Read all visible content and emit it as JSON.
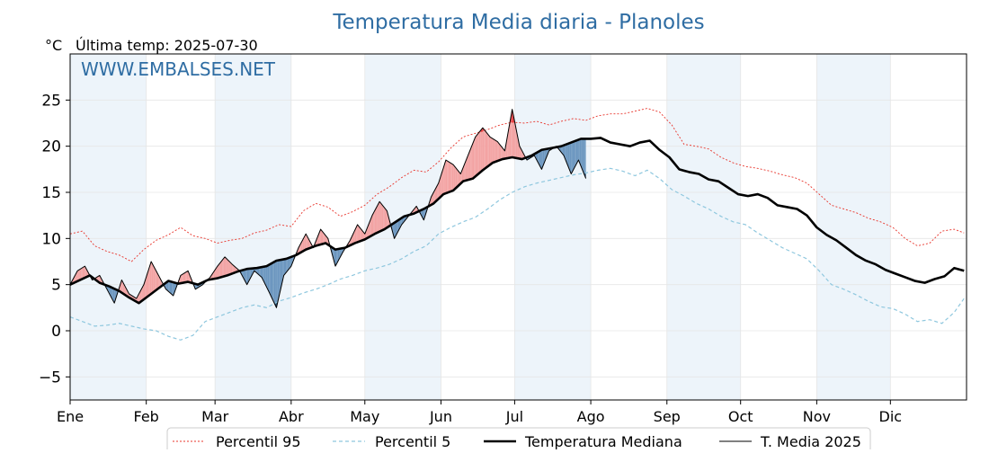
{
  "chart_data": {
    "type": "line",
    "title": "Temperatura Media diaria - Planoles",
    "unit": "°C",
    "subtitle": "Última temp: 2025-07-30",
    "watermark": "WWW.EMBALSES.NET",
    "ylim": [
      -7.5,
      30
    ],
    "yticks": [
      -5,
      0,
      5,
      10,
      15,
      20,
      25
    ],
    "months": [
      "Ene",
      "Feb",
      "Mar",
      "Abr",
      "May",
      "Jun",
      "Jul",
      "Ago",
      "Sep",
      "Oct",
      "Nov",
      "Dic"
    ],
    "month_start_days": [
      0,
      31,
      59,
      90,
      120,
      151,
      181,
      212,
      243,
      273,
      304,
      334
    ],
    "days_in_year": 365,
    "legend_position": "bottom",
    "legend": [
      "Percentil 95",
      "Percentil 5",
      "Temperatura Mediana",
      "T. Media 2025"
    ],
    "colors": {
      "title": "#2f6da3",
      "p95": "#e8342b",
      "p5": "#8ec7de",
      "median": "#000000",
      "current": "#000000",
      "above_fill": "#f3a3a3",
      "above_p95_fill": "#e8474b",
      "below_fill": "#6b96bf",
      "below_p5_fill": "#24476b",
      "month_band": "#edf4fa",
      "grid": "#e6e6e6"
    },
    "series": [
      {
        "name": "Percentil 95",
        "key": "p95",
        "points": [
          [
            0,
            10.5
          ],
          [
            5,
            10.8
          ],
          [
            10,
            9.2
          ],
          [
            15,
            8.6
          ],
          [
            20,
            8.2
          ],
          [
            25,
            7.5
          ],
          [
            30,
            8.8
          ],
          [
            35,
            9.8
          ],
          [
            40,
            10.4
          ],
          [
            45,
            11.2
          ],
          [
            50,
            10.3
          ],
          [
            55,
            10.0
          ],
          [
            60,
            9.5
          ],
          [
            65,
            9.8
          ],
          [
            70,
            10.0
          ],
          [
            75,
            10.6
          ],
          [
            80,
            10.9
          ],
          [
            85,
            11.5
          ],
          [
            90,
            11.3
          ],
          [
            95,
            13.0
          ],
          [
            100,
            13.8
          ],
          [
            105,
            13.4
          ],
          [
            110,
            12.4
          ],
          [
            115,
            12.9
          ],
          [
            120,
            13.6
          ],
          [
            125,
            14.8
          ],
          [
            130,
            15.6
          ],
          [
            135,
            16.6
          ],
          [
            140,
            17.4
          ],
          [
            145,
            17.2
          ],
          [
            150,
            18.3
          ],
          [
            155,
            19.8
          ],
          [
            160,
            21.0
          ],
          [
            165,
            21.4
          ],
          [
            170,
            21.8
          ],
          [
            175,
            22.3
          ],
          [
            180,
            22.6
          ],
          [
            185,
            22.5
          ],
          [
            190,
            22.7
          ],
          [
            195,
            22.3
          ],
          [
            200,
            22.7
          ],
          [
            205,
            23.0
          ],
          [
            210,
            22.8
          ],
          [
            215,
            23.3
          ],
          [
            220,
            23.5
          ],
          [
            225,
            23.5
          ],
          [
            230,
            23.8
          ],
          [
            235,
            24.1
          ],
          [
            240,
            23.7
          ],
          [
            245,
            22.3
          ],
          [
            250,
            20.2
          ],
          [
            255,
            20.0
          ],
          [
            260,
            19.7
          ],
          [
            265,
            18.8
          ],
          [
            270,
            18.2
          ],
          [
            275,
            17.8
          ],
          [
            280,
            17.6
          ],
          [
            285,
            17.3
          ],
          [
            290,
            16.9
          ],
          [
            295,
            16.6
          ],
          [
            300,
            16.0
          ],
          [
            305,
            14.8
          ],
          [
            310,
            13.6
          ],
          [
            315,
            13.2
          ],
          [
            320,
            12.8
          ],
          [
            325,
            12.2
          ],
          [
            330,
            11.8
          ],
          [
            335,
            11.2
          ],
          [
            340,
            10.0
          ],
          [
            345,
            9.2
          ],
          [
            350,
            9.5
          ],
          [
            355,
            10.8
          ],
          [
            360,
            11.0
          ],
          [
            364,
            10.6
          ]
        ]
      },
      {
        "name": "Percentil 5",
        "key": "p5",
        "points": [
          [
            0,
            1.5
          ],
          [
            5,
            1.0
          ],
          [
            10,
            0.5
          ],
          [
            15,
            0.6
          ],
          [
            20,
            0.8
          ],
          [
            25,
            0.5
          ],
          [
            30,
            0.2
          ],
          [
            35,
            0.0
          ],
          [
            40,
            -0.6
          ],
          [
            45,
            -1.0
          ],
          [
            50,
            -0.5
          ],
          [
            55,
            1.0
          ],
          [
            60,
            1.5
          ],
          [
            65,
            2.0
          ],
          [
            70,
            2.5
          ],
          [
            75,
            2.8
          ],
          [
            80,
            2.5
          ],
          [
            85,
            3.2
          ],
          [
            90,
            3.6
          ],
          [
            95,
            4.1
          ],
          [
            100,
            4.5
          ],
          [
            105,
            5.0
          ],
          [
            110,
            5.6
          ],
          [
            115,
            6.0
          ],
          [
            120,
            6.5
          ],
          [
            125,
            6.8
          ],
          [
            130,
            7.2
          ],
          [
            135,
            7.8
          ],
          [
            140,
            8.6
          ],
          [
            145,
            9.2
          ],
          [
            150,
            10.5
          ],
          [
            155,
            11.2
          ],
          [
            160,
            11.8
          ],
          [
            165,
            12.3
          ],
          [
            170,
            13.2
          ],
          [
            175,
            14.2
          ],
          [
            180,
            15.0
          ],
          [
            185,
            15.6
          ],
          [
            190,
            16.0
          ],
          [
            195,
            16.3
          ],
          [
            200,
            16.6
          ],
          [
            205,
            16.9
          ],
          [
            210,
            17.1
          ],
          [
            215,
            17.4
          ],
          [
            220,
            17.6
          ],
          [
            225,
            17.3
          ],
          [
            230,
            16.8
          ],
          [
            235,
            17.4
          ],
          [
            240,
            16.5
          ],
          [
            245,
            15.3
          ],
          [
            250,
            14.6
          ],
          [
            255,
            13.8
          ],
          [
            260,
            13.2
          ],
          [
            265,
            12.4
          ],
          [
            270,
            11.8
          ],
          [
            275,
            11.5
          ],
          [
            280,
            10.6
          ],
          [
            285,
            9.8
          ],
          [
            290,
            9.0
          ],
          [
            295,
            8.4
          ],
          [
            300,
            7.8
          ],
          [
            305,
            6.5
          ],
          [
            310,
            5.0
          ],
          [
            315,
            4.5
          ],
          [
            320,
            3.9
          ],
          [
            325,
            3.2
          ],
          [
            330,
            2.6
          ],
          [
            335,
            2.4
          ],
          [
            340,
            1.8
          ],
          [
            345,
            1.0
          ],
          [
            350,
            1.2
          ],
          [
            355,
            0.8
          ],
          [
            360,
            2.0
          ],
          [
            364,
            3.5
          ]
        ]
      },
      {
        "name": "Temperatura Mediana",
        "key": "median",
        "points": [
          [
            0,
            5.0
          ],
          [
            4,
            5.5
          ],
          [
            8,
            6.0
          ],
          [
            12,
            5.2
          ],
          [
            16,
            4.8
          ],
          [
            20,
            4.3
          ],
          [
            24,
            3.6
          ],
          [
            28,
            3.0
          ],
          [
            32,
            3.8
          ],
          [
            36,
            4.6
          ],
          [
            40,
            5.4
          ],
          [
            44,
            5.1
          ],
          [
            48,
            5.3
          ],
          [
            52,
            5.0
          ],
          [
            56,
            5.5
          ],
          [
            60,
            5.7
          ],
          [
            64,
            6.0
          ],
          [
            68,
            6.4
          ],
          [
            72,
            6.7
          ],
          [
            76,
            6.8
          ],
          [
            80,
            7.0
          ],
          [
            84,
            7.6
          ],
          [
            88,
            7.8
          ],
          [
            92,
            8.2
          ],
          [
            96,
            8.8
          ],
          [
            100,
            9.2
          ],
          [
            104,
            9.5
          ],
          [
            108,
            8.8
          ],
          [
            112,
            9.0
          ],
          [
            116,
            9.5
          ],
          [
            120,
            9.9
          ],
          [
            124,
            10.5
          ],
          [
            128,
            11.0
          ],
          [
            132,
            11.7
          ],
          [
            136,
            12.4
          ],
          [
            140,
            12.7
          ],
          [
            144,
            13.2
          ],
          [
            148,
            13.8
          ],
          [
            152,
            14.8
          ],
          [
            156,
            15.2
          ],
          [
            160,
            16.2
          ],
          [
            164,
            16.5
          ],
          [
            168,
            17.4
          ],
          [
            172,
            18.2
          ],
          [
            176,
            18.6
          ],
          [
            180,
            18.8
          ],
          [
            184,
            18.6
          ],
          [
            188,
            19.0
          ],
          [
            192,
            19.6
          ],
          [
            196,
            19.8
          ],
          [
            200,
            20.0
          ],
          [
            204,
            20.4
          ],
          [
            208,
            20.8
          ],
          [
            212,
            20.8
          ],
          [
            216,
            20.9
          ],
          [
            220,
            20.4
          ],
          [
            224,
            20.2
          ],
          [
            228,
            20.0
          ],
          [
            232,
            20.4
          ],
          [
            236,
            20.6
          ],
          [
            240,
            19.6
          ],
          [
            244,
            18.8
          ],
          [
            248,
            17.5
          ],
          [
            252,
            17.2
          ],
          [
            256,
            17.0
          ],
          [
            260,
            16.4
          ],
          [
            264,
            16.2
          ],
          [
            268,
            15.5
          ],
          [
            272,
            14.8
          ],
          [
            276,
            14.6
          ],
          [
            280,
            14.8
          ],
          [
            284,
            14.4
          ],
          [
            288,
            13.6
          ],
          [
            292,
            13.4
          ],
          [
            296,
            13.2
          ],
          [
            300,
            12.5
          ],
          [
            304,
            11.2
          ],
          [
            308,
            10.4
          ],
          [
            312,
            9.8
          ],
          [
            316,
            9.0
          ],
          [
            320,
            8.2
          ],
          [
            324,
            7.6
          ],
          [
            328,
            7.2
          ],
          [
            332,
            6.6
          ],
          [
            336,
            6.2
          ],
          [
            340,
            5.8
          ],
          [
            344,
            5.4
          ],
          [
            348,
            5.2
          ],
          [
            352,
            5.6
          ],
          [
            356,
            5.9
          ],
          [
            360,
            6.8
          ],
          [
            364,
            6.5
          ]
        ]
      },
      {
        "name": "T. Media 2025",
        "key": "current",
        "points": [
          [
            0,
            5.0
          ],
          [
            3,
            6.5
          ],
          [
            6,
            7.0
          ],
          [
            9,
            5.5
          ],
          [
            12,
            6.0
          ],
          [
            15,
            4.5
          ],
          [
            18,
            3.0
          ],
          [
            21,
            5.5
          ],
          [
            24,
            4.0
          ],
          [
            27,
            3.5
          ],
          [
            30,
            5.0
          ],
          [
            33,
            7.5
          ],
          [
            36,
            6.0
          ],
          [
            39,
            4.5
          ],
          [
            42,
            3.8
          ],
          [
            45,
            6.0
          ],
          [
            48,
            6.5
          ],
          [
            51,
            4.5
          ],
          [
            54,
            5.0
          ],
          [
            57,
            5.8
          ],
          [
            60,
            7.0
          ],
          [
            63,
            8.0
          ],
          [
            66,
            7.2
          ],
          [
            69,
            6.5
          ],
          [
            72,
            5.0
          ],
          [
            75,
            6.5
          ],
          [
            78,
            5.8
          ],
          [
            81,
            4.2
          ],
          [
            84,
            2.5
          ],
          [
            87,
            6.0
          ],
          [
            90,
            7.0
          ],
          [
            93,
            9.0
          ],
          [
            96,
            10.5
          ],
          [
            99,
            9.0
          ],
          [
            102,
            11.0
          ],
          [
            105,
            10.0
          ],
          [
            108,
            7.0
          ],
          [
            111,
            8.5
          ],
          [
            114,
            9.8
          ],
          [
            117,
            11.5
          ],
          [
            120,
            10.5
          ],
          [
            123,
            12.5
          ],
          [
            126,
            14.0
          ],
          [
            129,
            13.0
          ],
          [
            132,
            10.0
          ],
          [
            135,
            11.5
          ],
          [
            138,
            12.5
          ],
          [
            141,
            13.5
          ],
          [
            144,
            12.0
          ],
          [
            147,
            14.5
          ],
          [
            150,
            16.0
          ],
          [
            153,
            18.5
          ],
          [
            156,
            18.0
          ],
          [
            159,
            17.0
          ],
          [
            162,
            19.0
          ],
          [
            165,
            21.0
          ],
          [
            168,
            22.0
          ],
          [
            171,
            21.0
          ],
          [
            174,
            20.5
          ],
          [
            177,
            19.5
          ],
          [
            180,
            24.0
          ],
          [
            183,
            20.0
          ],
          [
            186,
            18.5
          ],
          [
            189,
            19.0
          ],
          [
            192,
            17.5
          ],
          [
            195,
            19.5
          ],
          [
            198,
            20.0
          ],
          [
            201,
            19.0
          ],
          [
            204,
            17.0
          ],
          [
            207,
            18.5
          ],
          [
            210,
            16.5
          ]
        ]
      }
    ]
  }
}
